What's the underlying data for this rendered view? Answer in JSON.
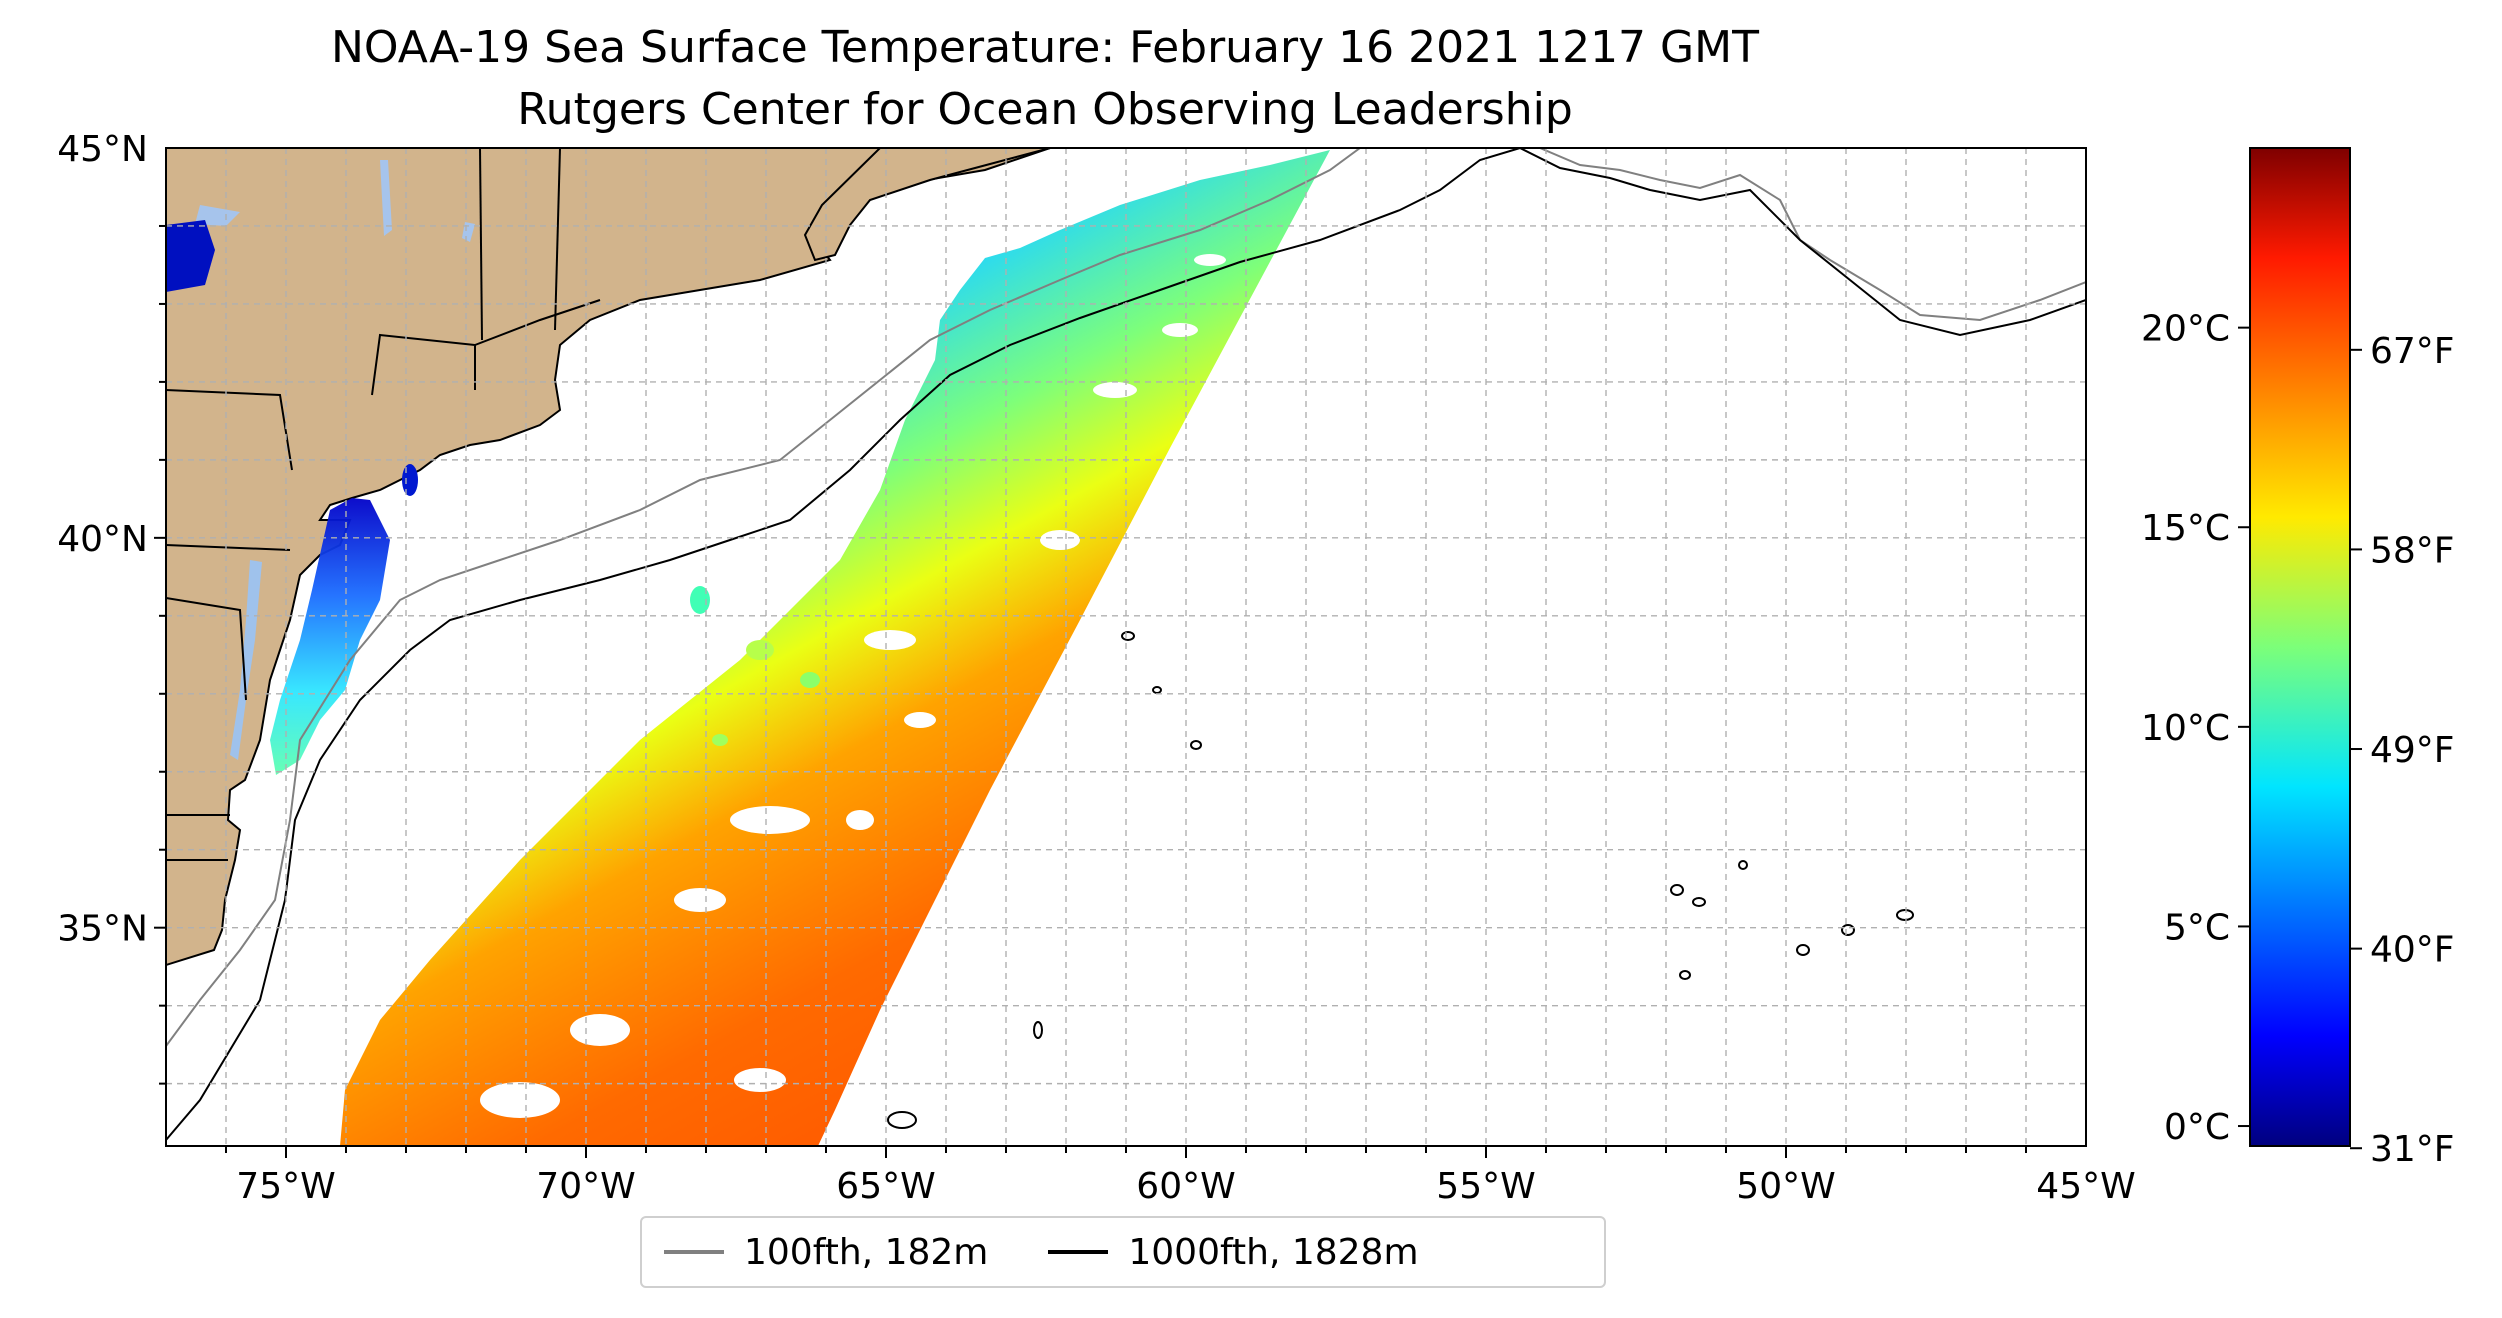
{
  "title": {
    "line1": "NOAA-19 Sea Surface Temperature: February 16 2021 1217 GMT",
    "line2": "Rutgers Center for Ocean Observing Leadership"
  },
  "map": {
    "lon_range": [
      -77,
      -45
    ],
    "lat_range": [
      32.2,
      45
    ],
    "x_ticks": [
      {
        "lon": -75,
        "label": "75°W"
      },
      {
        "lon": -70,
        "label": "70°W"
      },
      {
        "lon": -65,
        "label": "65°W"
      },
      {
        "lon": -60,
        "label": "60°W"
      },
      {
        "lon": -55,
        "label": "55°W"
      },
      {
        "lon": -50,
        "label": "50°W"
      },
      {
        "lon": -45,
        "label": "45°W"
      }
    ],
    "y_ticks": [
      {
        "lat": 35,
        "label": "35°N"
      },
      {
        "lat": 40,
        "label": "40°N"
      },
      {
        "lat": 45,
        "label": "45°N"
      }
    ],
    "gridlines": true,
    "colors": {
      "land": "#d2b48c",
      "lakes": "#a6c4ec",
      "isobath_100": "#808080",
      "isobath_1000": "#000000"
    }
  },
  "colorbar": {
    "colormap": "jet",
    "range_c": [
      -0.5,
      24.5
    ],
    "celsius_ticks": [
      {
        "value": 0,
        "label": "0°C"
      },
      {
        "value": 5,
        "label": "5°C"
      },
      {
        "value": 10,
        "label": "10°C"
      },
      {
        "value": 15,
        "label": "15°C"
      },
      {
        "value": 20,
        "label": "20°C"
      }
    ],
    "fahrenheit_ticks": [
      {
        "value_f": 31,
        "label": "31°F"
      },
      {
        "value_f": 40,
        "label": "40°F"
      },
      {
        "value_f": 49,
        "label": "49°F"
      },
      {
        "value_f": 58,
        "label": "58°F"
      },
      {
        "value_f": 67,
        "label": "67°F"
      }
    ]
  },
  "legend": {
    "items": [
      {
        "label": "100fth, 182m",
        "color": "#808080"
      },
      {
        "label": "1000fth, 1828m",
        "color": "#000000"
      }
    ],
    "placement": "bottom-center"
  }
}
